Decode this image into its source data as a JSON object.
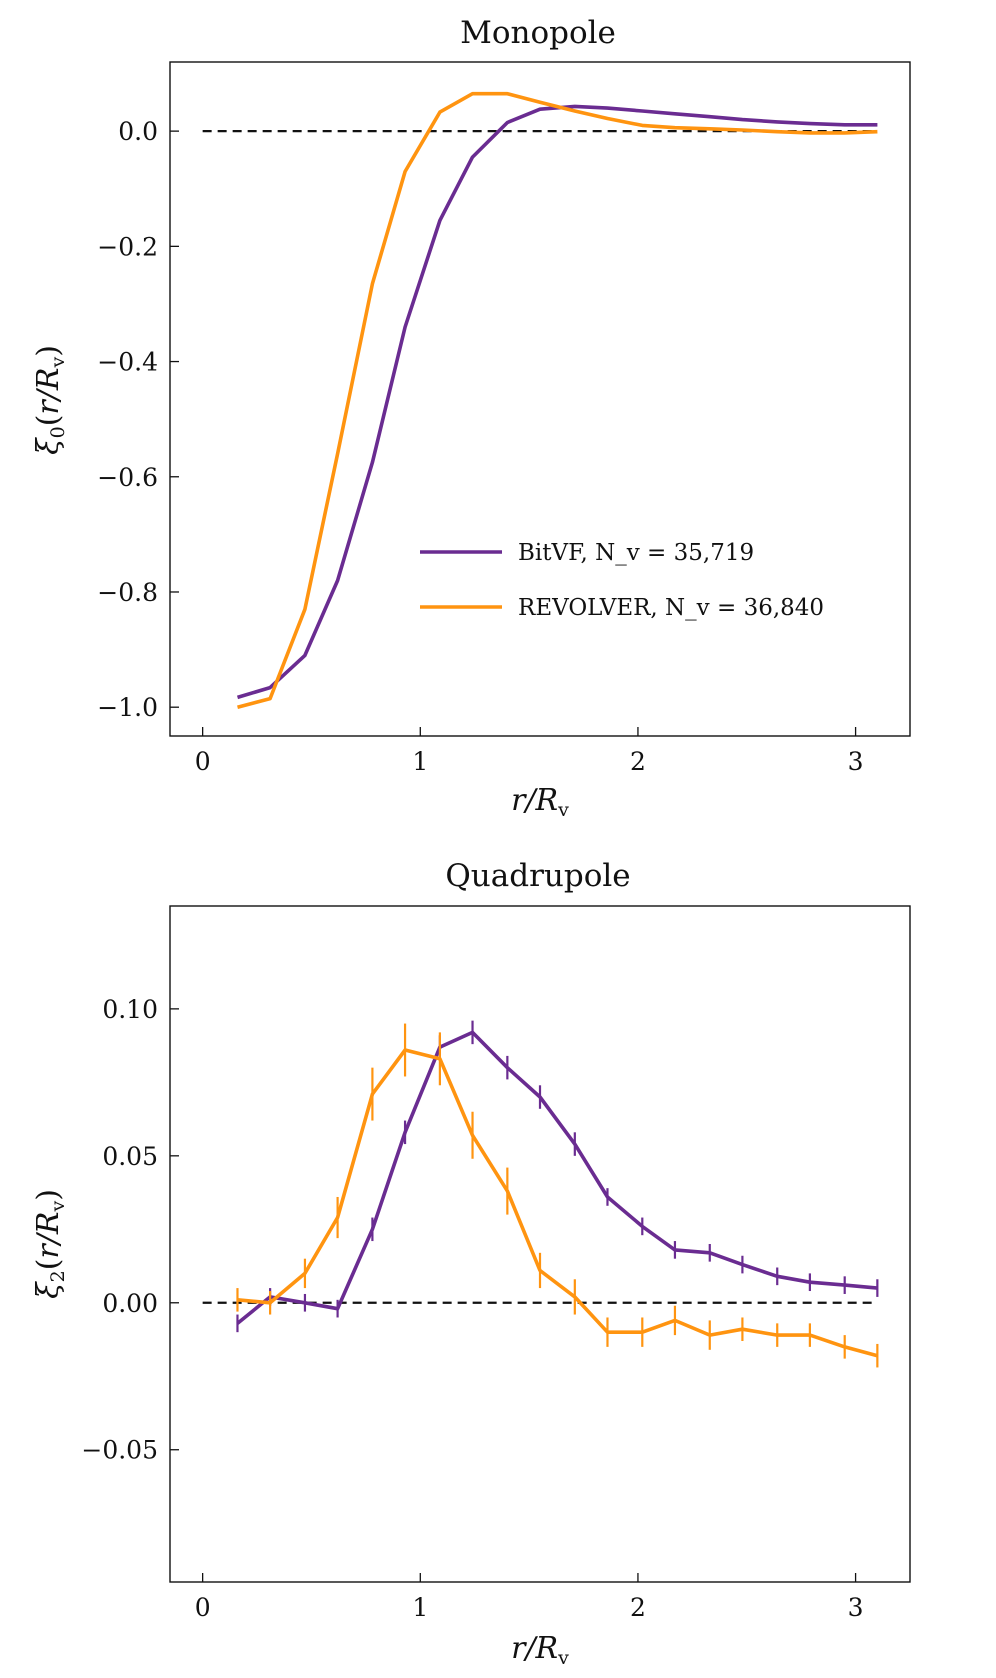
{
  "chart_data": [
    {
      "type": "line",
      "title": "Monopole",
      "xlabel": "r/R_v",
      "ylabel": "ξ0(r/R_v)",
      "xlim": [
        -0.15,
        3.25
      ],
      "ylim": [
        -1.05,
        0.12
      ],
      "xticks": [
        0,
        1,
        2,
        3
      ],
      "xtick_labels": [
        "0",
        "1",
        "2",
        "3"
      ],
      "yticks": [
        0.0,
        -0.2,
        -0.4,
        -0.6,
        -0.8,
        -1.0
      ],
      "ytick_labels": [
        "0.0",
        "−0.2",
        "−0.4",
        "−0.6",
        "−0.8",
        "−1.0"
      ],
      "reference_line": 0,
      "grid": false,
      "legend_position": "lower-right",
      "series": [
        {
          "name": "BitVF",
          "legend_label": "BitVF, N_v = 35,719",
          "color": "#6a2c91",
          "x": [
            0.16,
            0.31,
            0.47,
            0.62,
            0.78,
            0.93,
            1.09,
            1.24,
            1.4,
            1.55,
            1.71,
            1.86,
            2.02,
            2.17,
            2.33,
            2.48,
            2.64,
            2.79,
            2.95,
            3.1
          ],
          "y": [
            -0.983,
            -0.966,
            -0.91,
            -0.78,
            -0.575,
            -0.34,
            -0.155,
            -0.045,
            0.015,
            0.038,
            0.043,
            0.04,
            0.035,
            0.03,
            0.025,
            0.02,
            0.016,
            0.013,
            0.011,
            0.011
          ]
        },
        {
          "name": "REVOLVER",
          "legend_label": "REVOLVER, N_v = 36,840",
          "color": "#ff9410",
          "x": [
            0.16,
            0.31,
            0.47,
            0.62,
            0.78,
            0.93,
            1.09,
            1.24,
            1.4,
            1.55,
            1.71,
            1.86,
            2.02,
            2.17,
            2.33,
            2.48,
            2.64,
            2.79,
            2.95,
            3.1
          ],
          "y": [
            -1.0,
            -0.985,
            -0.83,
            -0.56,
            -0.265,
            -0.07,
            0.033,
            0.065,
            0.065,
            0.05,
            0.035,
            0.022,
            0.01,
            0.006,
            0.004,
            0.002,
            -0.001,
            -0.003,
            -0.003,
            -0.001
          ]
        }
      ]
    },
    {
      "type": "line",
      "title": "Quadrupole",
      "xlabel": "r/R_v",
      "ylabel": "ξ2(r/R_v)",
      "xlim": [
        -0.15,
        3.25
      ],
      "ylim": [
        -0.095,
        0.135
      ],
      "xticks": [
        0,
        1,
        2,
        3
      ],
      "xtick_labels": [
        "0",
        "1",
        "2",
        "3"
      ],
      "yticks": [
        0.1,
        0.05,
        0.0,
        -0.05
      ],
      "ytick_labels": [
        "0.10",
        "0.05",
        "0.00",
        "−0.05"
      ],
      "reference_line": 0,
      "grid": false,
      "series": [
        {
          "name": "BitVF",
          "color": "#6a2c91",
          "x": [
            0.16,
            0.31,
            0.47,
            0.62,
            0.78,
            0.93,
            1.09,
            1.24,
            1.4,
            1.55,
            1.71,
            1.86,
            2.02,
            2.17,
            2.33,
            2.48,
            2.64,
            2.79,
            2.95,
            3.1
          ],
          "y": [
            -0.007,
            0.002,
            0.0,
            -0.002,
            0.025,
            0.058,
            0.087,
            0.092,
            0.08,
            0.07,
            0.054,
            0.036,
            0.026,
            0.018,
            0.017,
            0.013,
            0.009,
            0.007,
            0.006,
            0.005
          ],
          "err": [
            0.003,
            0.003,
            0.003,
            0.003,
            0.004,
            0.004,
            0.004,
            0.004,
            0.004,
            0.004,
            0.004,
            0.003,
            0.003,
            0.003,
            0.003,
            0.003,
            0.003,
            0.003,
            0.003,
            0.003
          ]
        },
        {
          "name": "REVOLVER",
          "color": "#ff9410",
          "x": [
            0.16,
            0.31,
            0.47,
            0.62,
            0.78,
            0.93,
            1.09,
            1.24,
            1.4,
            1.55,
            1.71,
            1.86,
            2.02,
            2.17,
            2.33,
            2.48,
            2.64,
            2.79,
            2.95,
            3.1
          ],
          "y": [
            0.001,
            0.0,
            0.01,
            0.029,
            0.071,
            0.086,
            0.083,
            0.057,
            0.038,
            0.011,
            0.002,
            -0.01,
            -0.01,
            -0.006,
            -0.011,
            -0.009,
            -0.011,
            -0.011,
            -0.015,
            -0.018
          ],
          "err": [
            0.004,
            0.004,
            0.005,
            0.007,
            0.009,
            0.009,
            0.009,
            0.008,
            0.008,
            0.006,
            0.006,
            0.005,
            0.005,
            0.005,
            0.005,
            0.004,
            0.004,
            0.004,
            0.004,
            0.004
          ]
        }
      ]
    }
  ]
}
